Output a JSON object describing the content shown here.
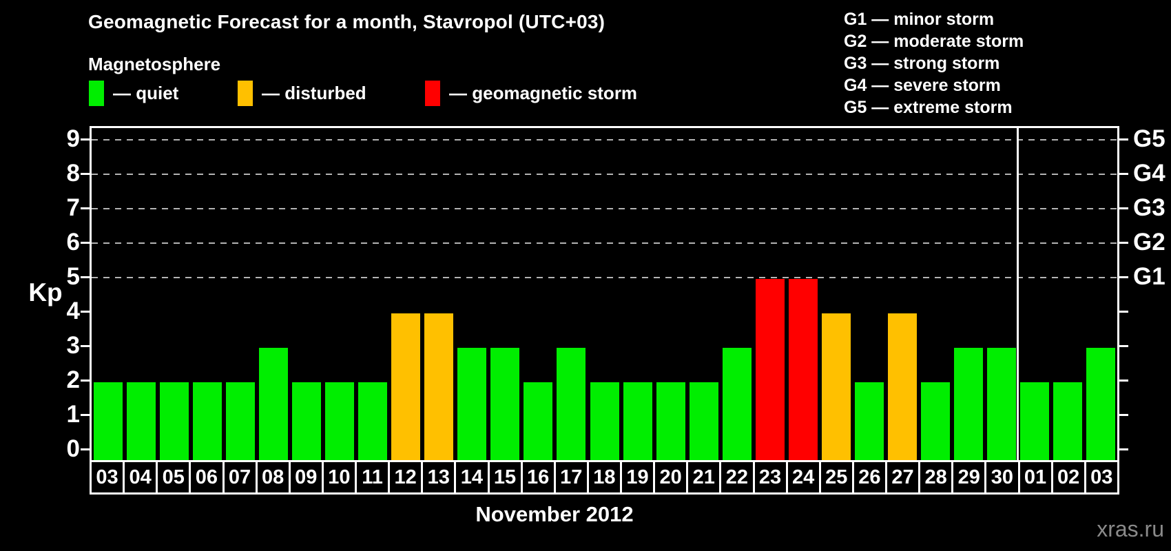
{
  "title": "Geomagnetic Forecast for a month, Stavropol (UTC+03)",
  "legend": {
    "heading": "Magnetosphere",
    "items": [
      {
        "key": "quiet",
        "label": "— quiet"
      },
      {
        "key": "disturbed",
        "label": "— disturbed"
      },
      {
        "key": "storm",
        "label": "— geomagnetic storm"
      }
    ]
  },
  "g_scale_legend": {
    "lines": [
      "G1 — minor storm",
      "G2 — moderate storm",
      "G3 — strong storm",
      "G4 — severe storm",
      "G5 — extreme storm"
    ]
  },
  "watermark": "xras.ru",
  "chart_data": {
    "type": "bar",
    "title": "Geomagnetic Forecast for a month, Stavropol (UTC+03)",
    "xlabel": "November 2012",
    "ylabel": "Kp",
    "ylim": [
      0,
      9
    ],
    "yticks": [
      0,
      1,
      2,
      3,
      4,
      5,
      6,
      7,
      8,
      9
    ],
    "gridlines_at": [
      5,
      6,
      7,
      8,
      9
    ],
    "grid": "dashed horizontal at Kp 5-9 only",
    "legend_position": "top",
    "right_axis": [
      {
        "kp": 5,
        "label": "G1"
      },
      {
        "kp": 6,
        "label": "G2"
      },
      {
        "kp": 7,
        "label": "G3"
      },
      {
        "kp": 8,
        "label": "G4"
      },
      {
        "kp": 9,
        "label": "G5"
      }
    ],
    "categories": [
      "03",
      "04",
      "05",
      "06",
      "07",
      "08",
      "09",
      "10",
      "11",
      "12",
      "13",
      "14",
      "15",
      "16",
      "17",
      "18",
      "19",
      "20",
      "21",
      "22",
      "23",
      "24",
      "25",
      "26",
      "27",
      "28",
      "29",
      "30",
      "01",
      "02",
      "03"
    ],
    "values": [
      2,
      2,
      2,
      2,
      2,
      3,
      2,
      2,
      2,
      4,
      4,
      3,
      3,
      2,
      3,
      2,
      2,
      2,
      2,
      3,
      5,
      5,
      4,
      2,
      4,
      2,
      3,
      3,
      2,
      2,
      3
    ],
    "statuses": [
      "quiet",
      "quiet",
      "quiet",
      "quiet",
      "quiet",
      "quiet",
      "quiet",
      "quiet",
      "quiet",
      "disturbed",
      "disturbed",
      "quiet",
      "quiet",
      "quiet",
      "quiet",
      "quiet",
      "quiet",
      "quiet",
      "quiet",
      "quiet",
      "storm",
      "storm",
      "disturbed",
      "quiet",
      "disturbed",
      "quiet",
      "quiet",
      "quiet",
      "quiet",
      "quiet",
      "quiet"
    ],
    "month_boundary_index": 28,
    "colors": {
      "quiet": "#00EE00",
      "disturbed": "#FFC000",
      "storm": "#FF0000",
      "gridline": "#b4b4b4",
      "axis": "#ffffff",
      "watermark": "#8a8a8a"
    }
  }
}
